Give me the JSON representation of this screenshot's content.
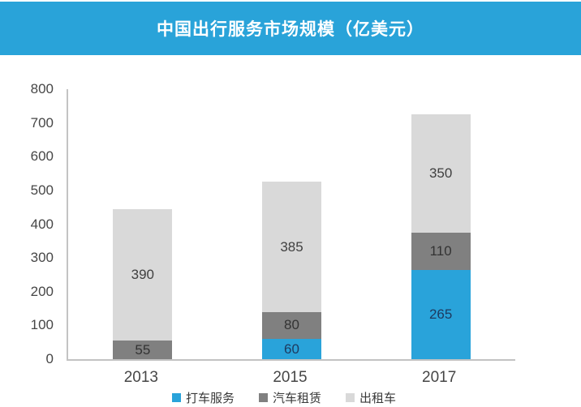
{
  "banner": {
    "title": "中国出行服务市场规模（亿美元）",
    "background": "#29A3D9",
    "text_color": "#FFFFFF"
  },
  "chart_data": {
    "type": "bar",
    "stacked": true,
    "title": "中国出行服务市场规模（亿美元）",
    "categories": [
      "2013",
      "2015",
      "2017"
    ],
    "series": [
      {
        "name": "打车服务",
        "color": "#29A3DA",
        "label_color": "#1E3A5F",
        "values": [
          0,
          60,
          265
        ]
      },
      {
        "name": "汽车租赁",
        "color": "#808080",
        "label_color": "#333333",
        "values": [
          55,
          80,
          110
        ]
      },
      {
        "name": "出租车",
        "color": "#D9D9D9",
        "label_color": "#404040",
        "values": [
          390,
          385,
          350
        ]
      }
    ],
    "totals": [
      445,
      525,
      725
    ],
    "y_axis": {
      "min": 0,
      "max": 800,
      "step": 100,
      "ticks": [
        800,
        700,
        600,
        500,
        400,
        300,
        200,
        100,
        0
      ]
    },
    "xlabel": "",
    "ylabel": "",
    "grid": false,
    "legend_position": "bottom",
    "axis_color": "#C3C3C3",
    "tick_text_color": "#464646"
  }
}
